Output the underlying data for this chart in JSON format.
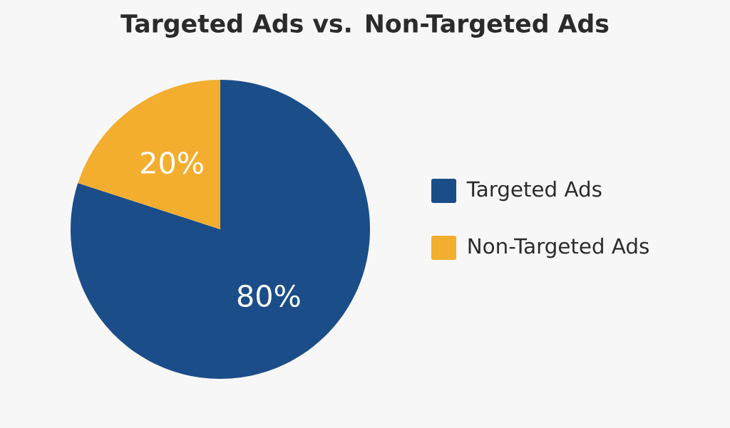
{
  "chart_data": {
    "type": "pie",
    "title": "Targeted Ads vs. Non-Targeted Ads",
    "categories": [
      "Targeted Ads",
      "Non-Targeted Ads"
    ],
    "values": [
      80,
      20
    ],
    "colors": [
      "#1b4d89",
      "#f3ae2f"
    ],
    "value_labels": [
      "80%",
      "20%"
    ],
    "legend": "right"
  }
}
